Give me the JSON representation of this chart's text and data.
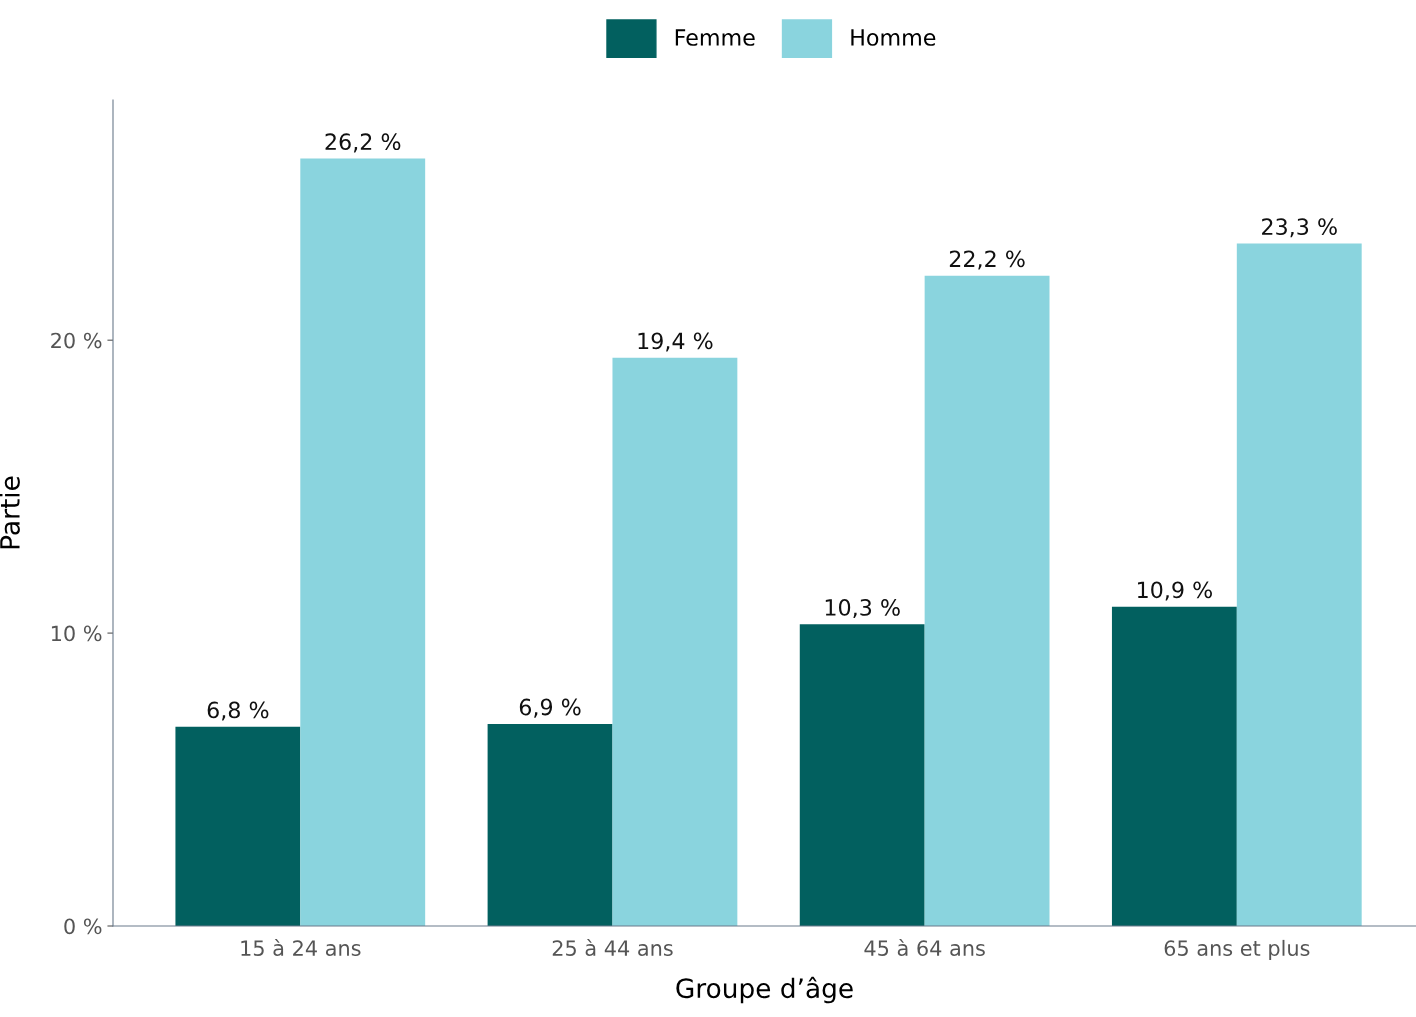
{
  "chart_data": {
    "type": "bar",
    "xlabel": "Groupe d’âge",
    "ylabel": "Partie",
    "categories": [
      "15 à 24 ans",
      "25 à 44 ans",
      "45 à 64 ans",
      "65 ans et plus"
    ],
    "series": [
      {
        "name": "Femme",
        "color": "#02605f",
        "values": [
          6.8,
          6.9,
          10.3,
          10.9
        ],
        "value_labels": [
          "6,8 %",
          "6,9 %",
          "10,3 %",
          "10,9 %"
        ]
      },
      {
        "name": "Homme",
        "color": "#8ad4de",
        "values": [
          26.2,
          19.4,
          22.2,
          23.3
        ],
        "value_labels": [
          "26,2 %",
          "19,4 %",
          "22,2 %",
          "23,3 %"
        ]
      }
    ],
    "ylim": [
      0,
      28.2
    ],
    "yticks": [
      {
        "value": 0,
        "label": "0 %"
      },
      {
        "value": 10,
        "label": "10 %"
      },
      {
        "value": 20,
        "label": "20 %"
      }
    ],
    "grid": false,
    "legend": "top"
  }
}
